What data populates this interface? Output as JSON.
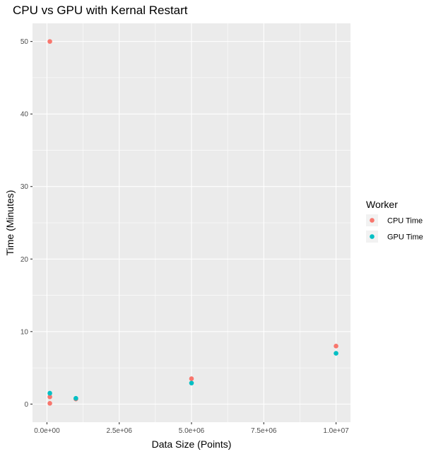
{
  "chart_data": {
    "type": "scatter",
    "title": "CPU vs GPU with Kernal Restart",
    "xlabel": "Data Size (Points)",
    "ylabel": "Time (Minutes)",
    "xlim": [
      -500000,
      10500000
    ],
    "ylim": [
      -2.5,
      52.5
    ],
    "x_ticks": [
      {
        "value": 0,
        "label": "0.0e+00"
      },
      {
        "value": 2500000,
        "label": "2.5e+06"
      },
      {
        "value": 5000000,
        "label": "5.0e+06"
      },
      {
        "value": 7500000,
        "label": "7.5e+06"
      },
      {
        "value": 10000000,
        "label": "1.0e+07"
      }
    ],
    "y_ticks": [
      {
        "value": 0,
        "label": "0"
      },
      {
        "value": 10,
        "label": "10"
      },
      {
        "value": 20,
        "label": "20"
      },
      {
        "value": 30,
        "label": "30"
      },
      {
        "value": 40,
        "label": "40"
      },
      {
        "value": 50,
        "label": "50"
      }
    ],
    "grid": true,
    "legend": {
      "title": "Worker",
      "position": "right"
    },
    "series": [
      {
        "name": "CPU Time",
        "color": "#F8766D",
        "points": [
          {
            "x": 100000,
            "y": 50.0
          },
          {
            "x": 100000,
            "y": 1.0
          },
          {
            "x": 100000,
            "y": 0.1
          },
          {
            "x": 1000000,
            "y": 0.7
          },
          {
            "x": 5000000,
            "y": 3.5
          },
          {
            "x": 10000000,
            "y": 8.0
          }
        ]
      },
      {
        "name": "GPU Time",
        "color": "#00BFC4",
        "points": [
          {
            "x": 100000,
            "y": 1.5
          },
          {
            "x": 1000000,
            "y": 0.8
          },
          {
            "x": 5000000,
            "y": 2.9
          },
          {
            "x": 10000000,
            "y": 7.0
          }
        ]
      }
    ]
  },
  "colors": {
    "panel_background": "#EBEBEB",
    "grid_major": "#FFFFFF",
    "axis_text": "#4D4D4D",
    "title_text": "#000000"
  }
}
